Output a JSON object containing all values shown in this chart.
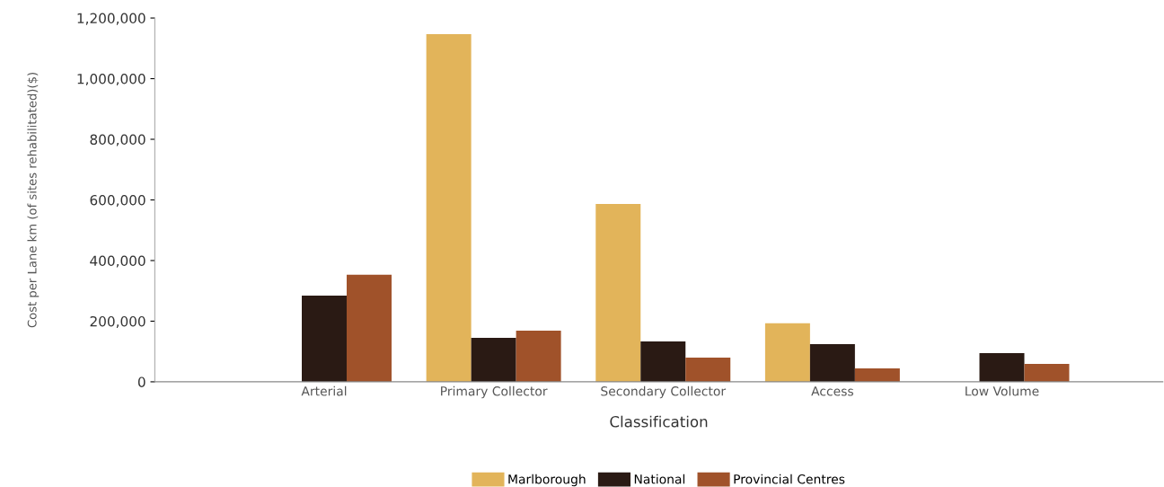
{
  "chart_data": {
    "type": "bar",
    "xlabel": "Classification",
    "ylabel": "Cost per Lane km (of sites rehabilitated)($)",
    "categories": [
      null,
      "Arterial",
      "Primary Collector",
      "Secondary Collector",
      "Access",
      "Low Volume"
    ],
    "series": [
      {
        "name": "Marlborough",
        "color": "#e2b45a",
        "values": [
          null,
          null,
          1147000,
          587000,
          193000,
          null
        ]
      },
      {
        "name": "National",
        "color": "#2a1a14",
        "values": [
          null,
          284000,
          145000,
          133000,
          124000,
          95000
        ]
      },
      {
        "name": "Provincial Centres",
        "color": "#a0522a",
        "values": [
          null,
          353000,
          169000,
          80000,
          44000,
          59000
        ]
      }
    ],
    "ylim": [
      0,
      1200000
    ],
    "yticks": [
      {
        "value": 0,
        "label": "0"
      },
      {
        "value": 200000,
        "label": "200,000"
      },
      {
        "value": 400000,
        "label": "400,000"
      },
      {
        "value": 600000,
        "label": "600,000"
      },
      {
        "value": 800000,
        "label": "800,000"
      },
      {
        "value": 1000000,
        "label": "1,000,000"
      },
      {
        "value": 1200000,
        "label": "1,200,000"
      }
    ],
    "grid": false,
    "legend": "bottom"
  }
}
